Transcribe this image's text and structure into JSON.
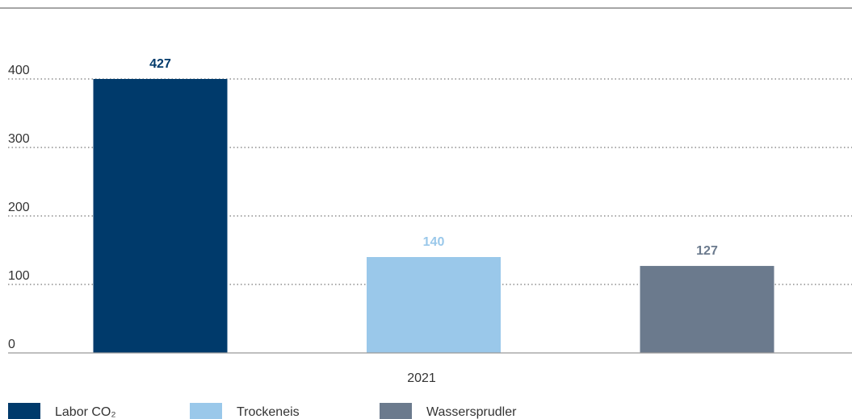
{
  "chart_data": {
    "type": "bar",
    "categories": [
      "2021"
    ],
    "series": [
      {
        "name": "Labor CO₂",
        "color": "#003a6b",
        "values": [
          427
        ]
      },
      {
        "name": "Trockeneis",
        "color": "#9ac8ea",
        "values": [
          140
        ]
      },
      {
        "name": "Wassersprudler",
        "color": "#6b7a8d",
        "values": [
          127
        ]
      }
    ],
    "ylim": [
      0,
      400
    ],
    "yticks": [
      0,
      100,
      200,
      300,
      400
    ],
    "grid": true,
    "legend": "bottom"
  }
}
